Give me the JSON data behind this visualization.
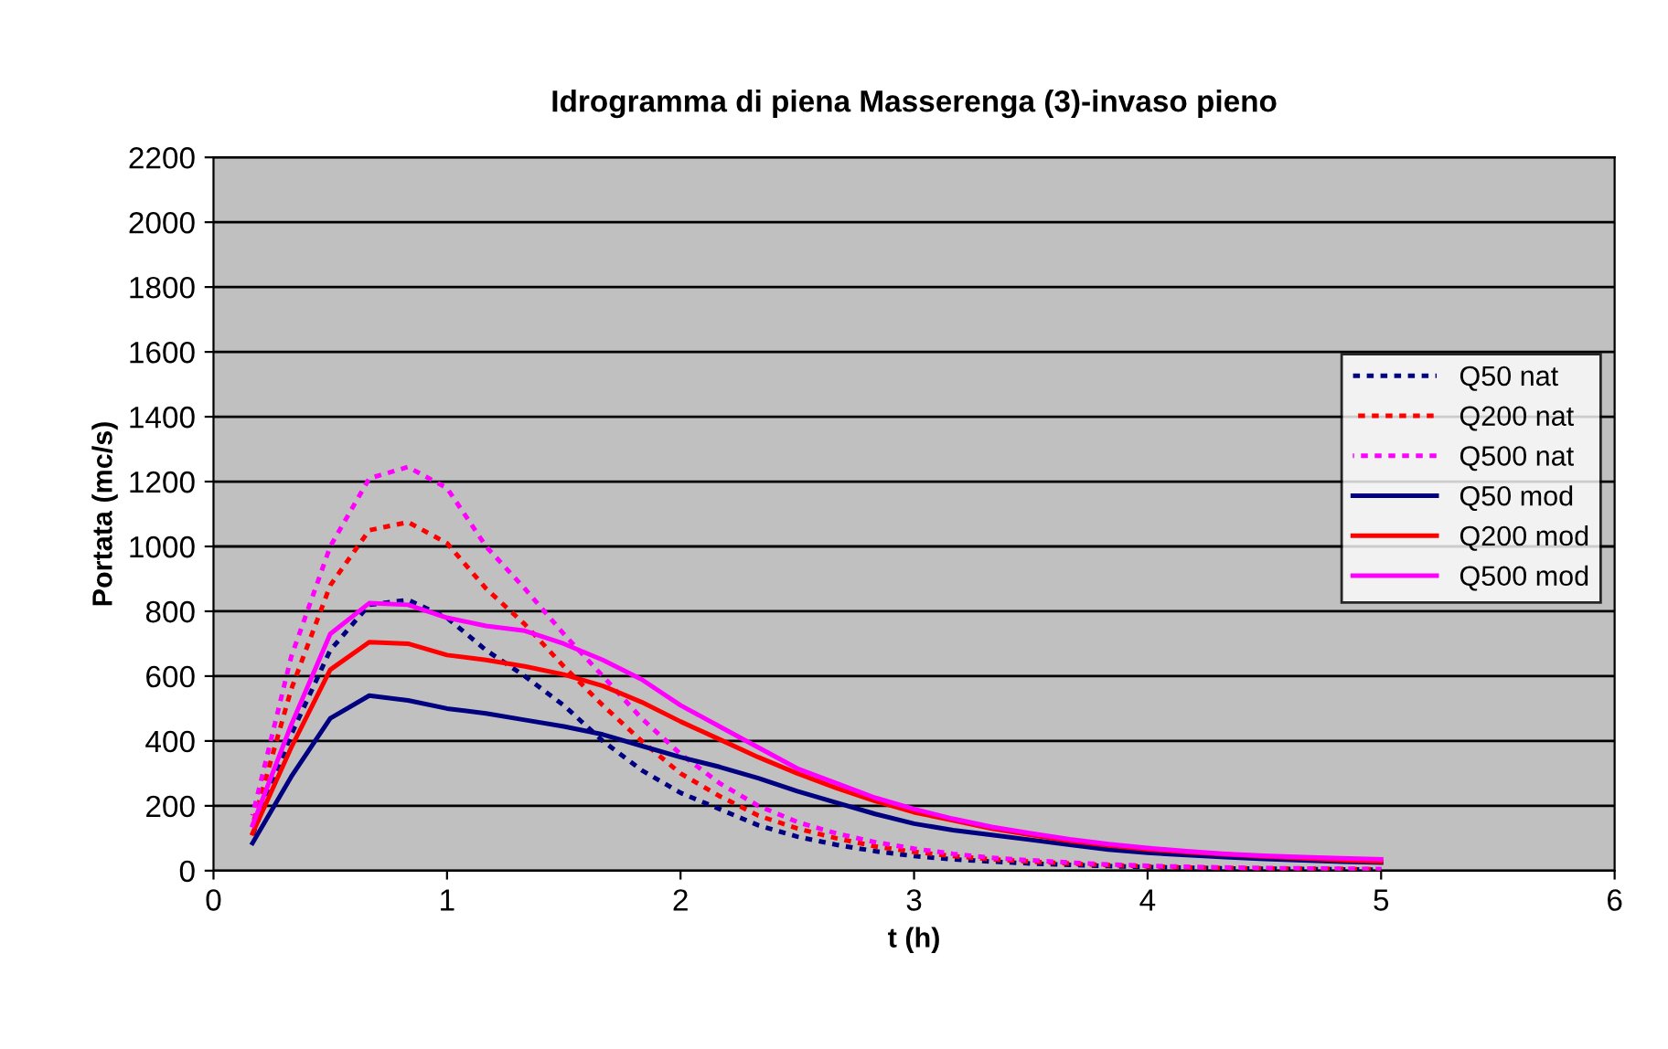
{
  "chart_data": {
    "type": "line",
    "title": "Idrogramma di piena Masserenga (3)-invaso pieno",
    "xlabel": "t (h)",
    "ylabel": "Portata (mc/s)",
    "x": [
      0.167,
      0.333,
      0.5,
      0.667,
      0.833,
      1.0,
      1.167,
      1.333,
      1.5,
      1.667,
      1.833,
      2.0,
      2.167,
      2.333,
      2.5,
      2.667,
      2.833,
      3.0,
      3.167,
      3.333,
      3.5,
      3.667,
      3.833,
      4.0,
      4.167,
      4.333,
      4.5,
      4.667,
      4.833,
      5.0
    ],
    "xlim": [
      0,
      6
    ],
    "xticks": [
      0,
      1,
      2,
      3,
      4,
      5,
      6
    ],
    "ylim": [
      0,
      2200
    ],
    "yticks": [
      0,
      200,
      400,
      600,
      800,
      1000,
      1200,
      1400,
      1600,
      1800,
      2000,
      2200
    ],
    "grid": "y",
    "legend": "right",
    "marker": "none",
    "series": [
      {
        "name": "Q50 nat",
        "color": "#000080",
        "line_style": "dashed",
        "values": [
          110,
          420,
          680,
          820,
          835,
          780,
          680,
          600,
          510,
          400,
          310,
          240,
          190,
          140,
          105,
          80,
          60,
          45,
          35,
          28,
          22,
          18,
          14,
          11,
          9,
          7,
          6,
          5,
          4,
          3
        ]
      },
      {
        "name": "Q200 nat",
        "color": "#ff0000",
        "line_style": "dashed",
        "values": [
          140,
          560,
          880,
          1050,
          1075,
          1010,
          870,
          760,
          630,
          510,
          400,
          300,
          230,
          170,
          130,
          100,
          75,
          58,
          45,
          35,
          28,
          22,
          17,
          13,
          10,
          8,
          7,
          6,
          5,
          4
        ]
      },
      {
        "name": "Q500 nat",
        "color": "#ff00ff",
        "line_style": "dashed",
        "values": [
          170,
          660,
          1000,
          1210,
          1245,
          1180,
          1000,
          870,
          730,
          600,
          470,
          360,
          270,
          200,
          150,
          115,
          88,
          68,
          52,
          40,
          32,
          25,
          19,
          15,
          12,
          10,
          8,
          7,
          6,
          5
        ]
      },
      {
        "name": "Q50 mod",
        "color": "#000080",
        "line_style": "solid",
        "values": [
          85,
          290,
          470,
          540,
          525,
          500,
          485,
          465,
          445,
          420,
          385,
          350,
          320,
          285,
          245,
          210,
          175,
          145,
          125,
          110,
          95,
          80,
          65,
          55,
          48,
          42,
          36,
          32,
          28,
          25
        ]
      },
      {
        "name": "Q200 mod",
        "color": "#ff0000",
        "line_style": "solid",
        "values": [
          115,
          380,
          620,
          705,
          700,
          665,
          650,
          630,
          605,
          570,
          520,
          460,
          405,
          350,
          300,
          255,
          215,
          180,
          155,
          130,
          110,
          92,
          78,
          66,
          57,
          50,
          44,
          38,
          33,
          28
        ]
      },
      {
        "name": "Q500 mod",
        "color": "#ff00ff",
        "line_style": "solid",
        "values": [
          140,
          450,
          730,
          825,
          820,
          780,
          755,
          740,
          700,
          650,
          590,
          510,
          445,
          380,
          315,
          270,
          225,
          190,
          160,
          135,
          115,
          97,
          82,
          70,
          60,
          52,
          46,
          42,
          38,
          35
        ]
      }
    ]
  }
}
